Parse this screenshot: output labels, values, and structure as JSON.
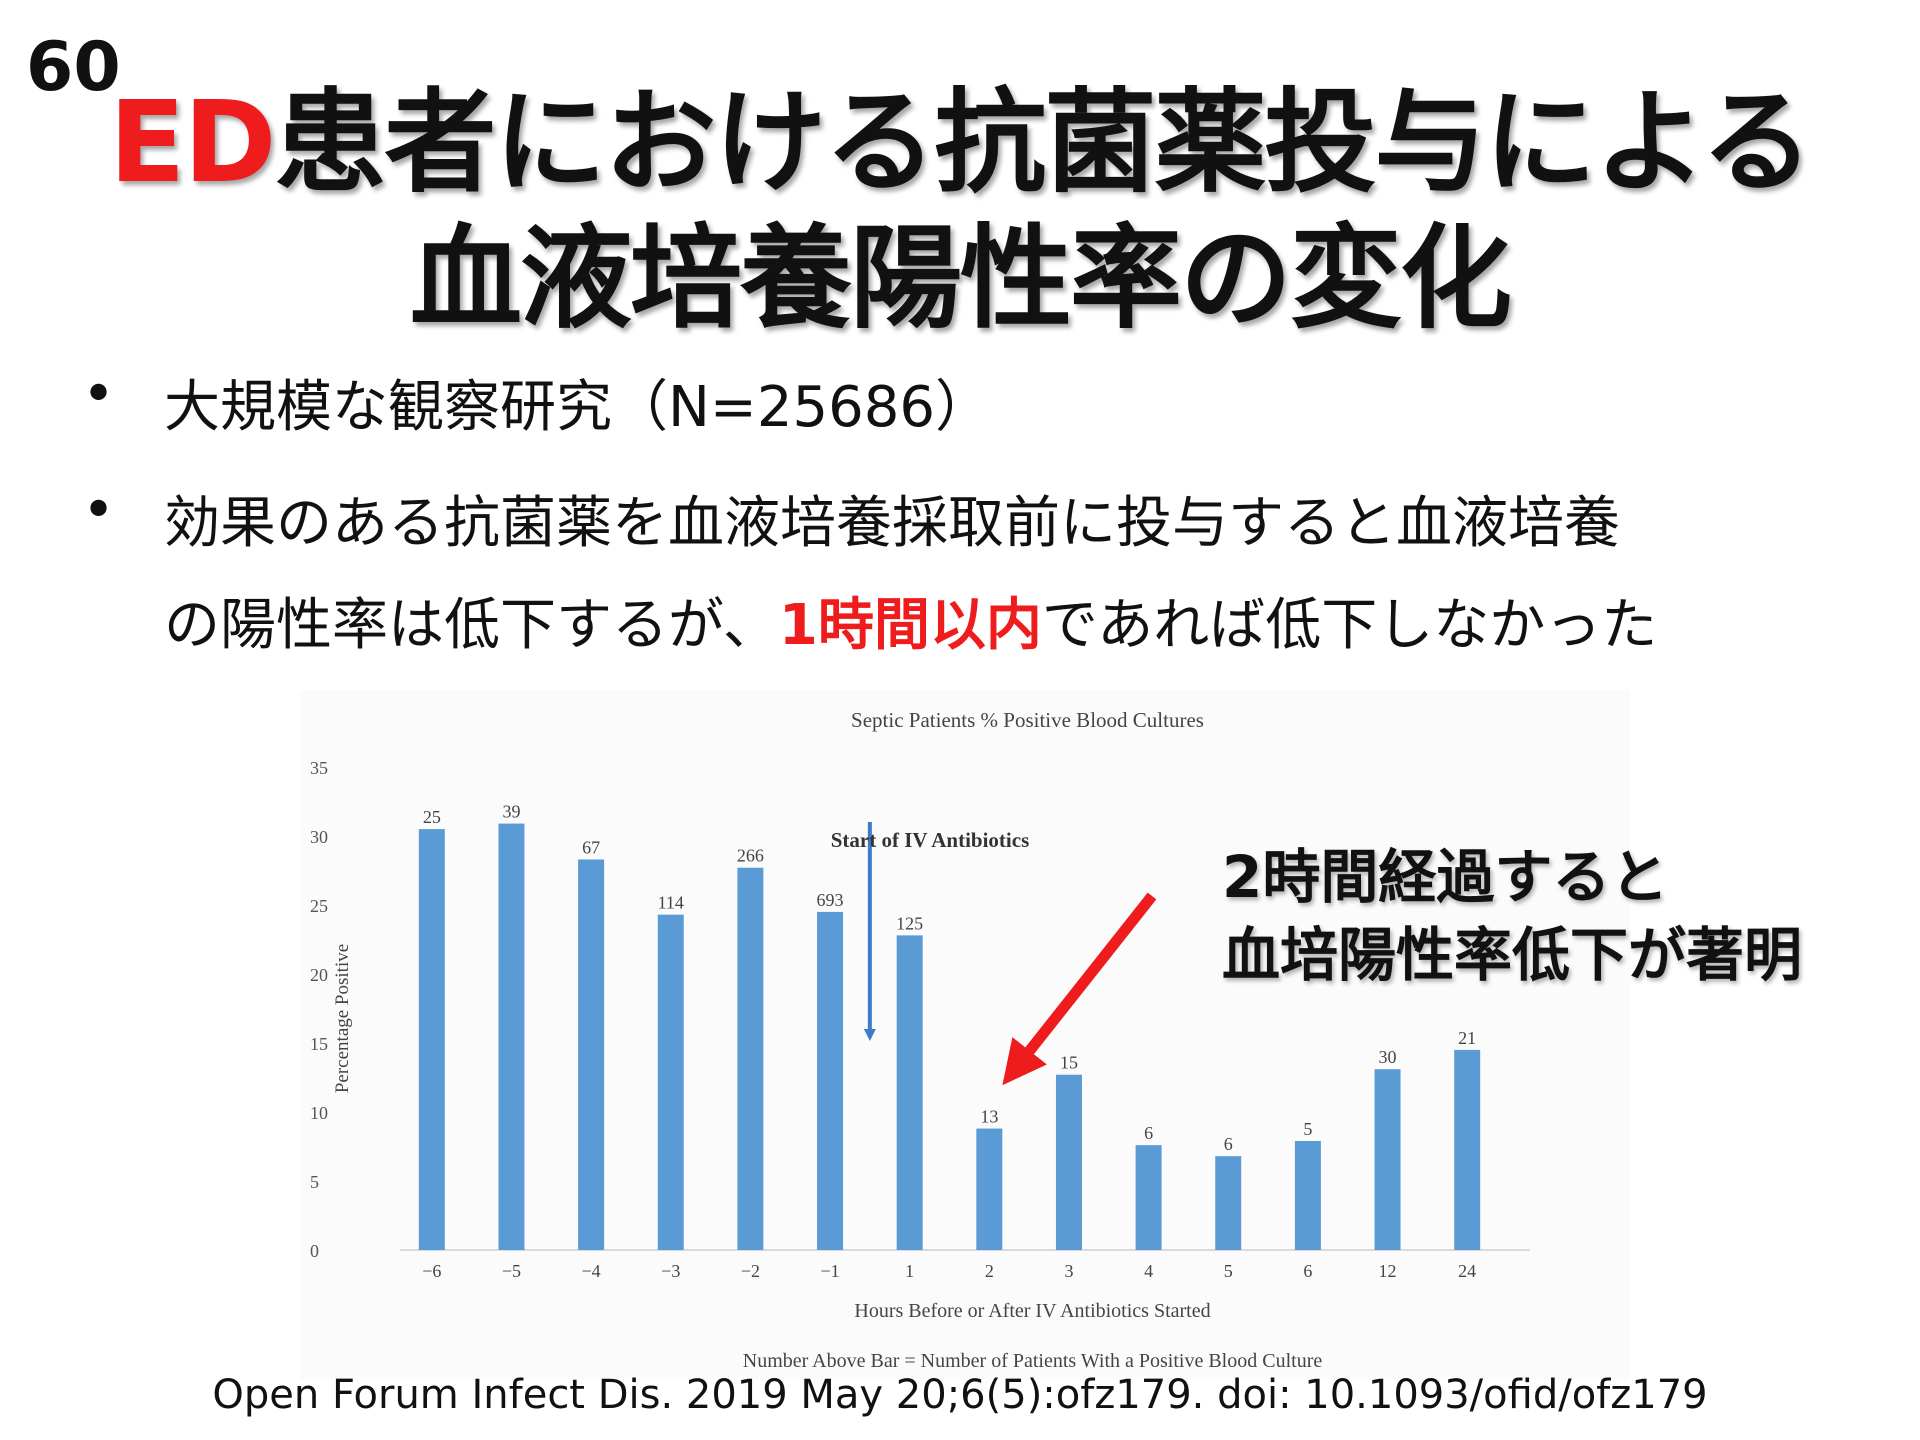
{
  "slide_number": "60",
  "title": {
    "accent": "ED",
    "line1_rest": "患者における抗菌薬投与による",
    "line2": "血液培養陽性率の変化"
  },
  "bullets": [
    {
      "marker": "•",
      "text": "大規模な観察研究（N=25686）"
    },
    {
      "marker": "•",
      "text_line1": "効果のある抗菌薬を血液培養採取前に投与すると血液培養",
      "text_line2_before": "の陽性率は低下するが、",
      "text_line2_highlight": "1時間以内",
      "text_line2_after": "であれば低下しなかった"
    }
  ],
  "annotation": {
    "line1": "2時間経過すると",
    "line2": "血培陽性率低下が著明"
  },
  "citation": "Open Forum Infect Dis. 2019 May 20;6(5):ofz179. doi: 10.1093/ofid/ofz179",
  "colors": {
    "bar": "#5b9bd5",
    "accent_red": "#ee1c1c",
    "arrow_red": "#ee1c1c"
  },
  "chart_data": {
    "type": "bar",
    "title": "Septic Patients % Positive Blood Cultures",
    "xlabel": "Hours Before or After IV Antibiotics Started",
    "ylabel": "Percentage Positive",
    "footnote": "Number Above Bar = Number of Patients With a Positive Blood Culture",
    "marker_label": "Start of IV Antibiotics",
    "categories": [
      "−6",
      "−5",
      "−4",
      "−3",
      "−2",
      "−1",
      "1",
      "2",
      "3",
      "4",
      "5",
      "6",
      "12",
      "24"
    ],
    "values": [
      30.5,
      30.9,
      28.3,
      24.3,
      27.7,
      24.5,
      22.8,
      8.8,
      12.7,
      7.6,
      6.8,
      7.9,
      13.1,
      14.5
    ],
    "bar_labels": [
      "25",
      "39",
      "67",
      "114",
      "266",
      "693",
      "125",
      "13",
      "15",
      "6",
      "6",
      "5",
      "30",
      "21"
    ],
    "ylim": [
      0,
      35
    ],
    "yticks": [
      "0",
      "5",
      "10",
      "15",
      "20",
      "25",
      "30",
      "35"
    ],
    "grid": false,
    "legend": "none"
  }
}
